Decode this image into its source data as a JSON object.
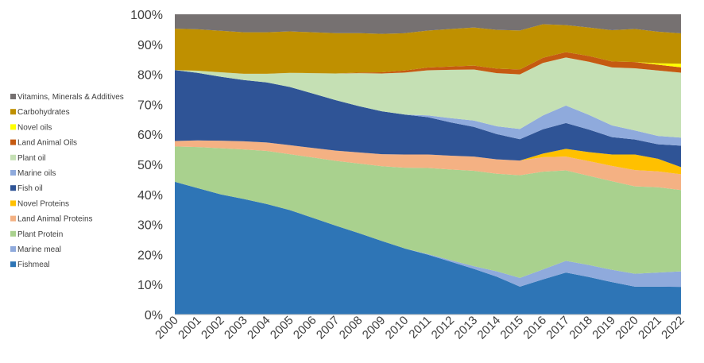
{
  "chart_data": {
    "type": "area",
    "stacked": "percent",
    "x": [
      "2000",
      "2001",
      "2002",
      "2003",
      "2004",
      "2005",
      "2006",
      "2007",
      "2008",
      "2009",
      "2010",
      "2011",
      "2012",
      "2013",
      "2014",
      "2015",
      "2016",
      "2017",
      "2018",
      "2019",
      "2020",
      "2021",
      "2022"
    ],
    "y_tick_labels": [
      "0%",
      "10%",
      "20%",
      "30%",
      "40%",
      "50%",
      "60%",
      "70%",
      "80%",
      "90%",
      "100%"
    ],
    "ylim": [
      0,
      100
    ],
    "legend_position": "left",
    "grid": false,
    "series": [
      {
        "name": "Fishmeal",
        "color": "#2e75b6",
        "values": [
          44.2,
          42.1,
          40.0,
          38.5,
          36.8,
          34.8,
          32.2,
          29.6,
          27.1,
          24.5,
          22.0,
          19.9,
          17.6,
          15.2,
          12.6,
          9.3,
          11.7,
          14.0,
          12.5,
          10.8,
          9.3,
          9.3,
          9.3
        ]
      },
      {
        "name": "Marine meal",
        "color": "#8faadc",
        "values": [
          0,
          0,
          0,
          0,
          0,
          0,
          0,
          0,
          0,
          0,
          0,
          0.2,
          0.5,
          0.9,
          1.8,
          2.9,
          3.3,
          3.9,
          4.0,
          4.1,
          4.3,
          4.7,
          5.2
        ]
      },
      {
        "name": "Plant Protein",
        "color": "#a9d18e",
        "values": [
          11.8,
          13.7,
          15.4,
          16.5,
          17.7,
          18.6,
          20.1,
          21.6,
          23.2,
          24.9,
          26.9,
          28.6,
          30.2,
          31.8,
          32.5,
          34.2,
          32.6,
          30.1,
          29.7,
          29.5,
          29.1,
          28.4,
          27.3
        ]
      },
      {
        "name": "Land Animal Proteins",
        "color": "#f4b183",
        "values": [
          1.8,
          2.2,
          2.5,
          2.7,
          2.8,
          3.0,
          3.2,
          3.4,
          3.7,
          4.0,
          4.4,
          4.5,
          4.6,
          4.7,
          4.8,
          4.9,
          4.8,
          4.6,
          4.9,
          5.1,
          5.4,
          5.3,
          5.3
        ]
      },
      {
        "name": "Novel Proteins",
        "color": "#ffc000",
        "values": [
          0,
          0,
          0,
          0,
          0,
          0,
          0,
          0,
          0,
          0,
          0,
          0,
          0,
          0,
          0,
          0,
          1.2,
          2.6,
          3.0,
          3.8,
          5.2,
          4.2,
          2.4
        ]
      },
      {
        "name": "Fish oil",
        "color": "#2f5496",
        "values": [
          23.6,
          22.5,
          21.3,
          20.4,
          20.0,
          19.4,
          18.1,
          16.8,
          15.4,
          14.3,
          13.3,
          12.4,
          11.1,
          9.9,
          8.4,
          7.1,
          8.1,
          8.6,
          7.5,
          5.8,
          5.0,
          4.8,
          7.2
        ]
      },
      {
        "name": "Marine oils",
        "color": "#8faadc",
        "values": [
          0,
          0,
          0,
          0,
          0,
          0,
          0,
          0,
          0,
          0,
          0,
          0.6,
          1.4,
          2.1,
          2.6,
          3.4,
          4.6,
          5.8,
          4.9,
          3.9,
          3.0,
          2.8,
          2.7
        ]
      },
      {
        "name": "Plant oil",
        "color": "#c5e0b4",
        "values": [
          0,
          0.7,
          1.5,
          2.1,
          2.9,
          4.7,
          6.8,
          8.9,
          11.0,
          12.6,
          14.0,
          15.0,
          16.1,
          17.0,
          17.7,
          18.2,
          17.5,
          16.0,
          17.7,
          19.3,
          20.7,
          21.8,
          21.8
        ]
      },
      {
        "name": "Land Animal Oils",
        "color": "#c55a11",
        "values": [
          0,
          0,
          0,
          0,
          0,
          0,
          0,
          0,
          0.2,
          0.4,
          0.7,
          0.9,
          1.1,
          1.3,
          1.5,
          1.6,
          1.7,
          1.8,
          1.9,
          2.0,
          2.1,
          1.9,
          1.8
        ]
      },
      {
        "name": "Novel oils",
        "color": "#ffff00",
        "values": [
          0,
          0,
          0,
          0,
          0,
          0,
          0,
          0,
          0,
          0,
          0,
          0,
          0,
          0,
          0,
          0,
          0,
          0,
          0,
          0,
          0,
          0.5,
          1.2
        ]
      },
      {
        "name": "Carbohydrates",
        "color": "#bf9000",
        "values": [
          13.8,
          13.8,
          13.8,
          13.8,
          13.8,
          13.8,
          13.6,
          13.4,
          13.1,
          12.8,
          12.4,
          12.3,
          12.5,
          12.7,
          12.9,
          13.0,
          11.2,
          9.0,
          9.5,
          10.4,
          11.0,
          10.5,
          10.2
        ]
      },
      {
        "name": "Vitamins, Minerals & Additives",
        "color": "#767171",
        "values": [
          4.8,
          5.0,
          5.5,
          6.0,
          6.0,
          5.7,
          6.0,
          6.3,
          6.3,
          6.5,
          6.3,
          5.4,
          4.9,
          4.4,
          5.2,
          5.4,
          3.3,
          3.6,
          4.4,
          5.3,
          4.9,
          5.8,
          6.4
        ]
      }
    ]
  }
}
